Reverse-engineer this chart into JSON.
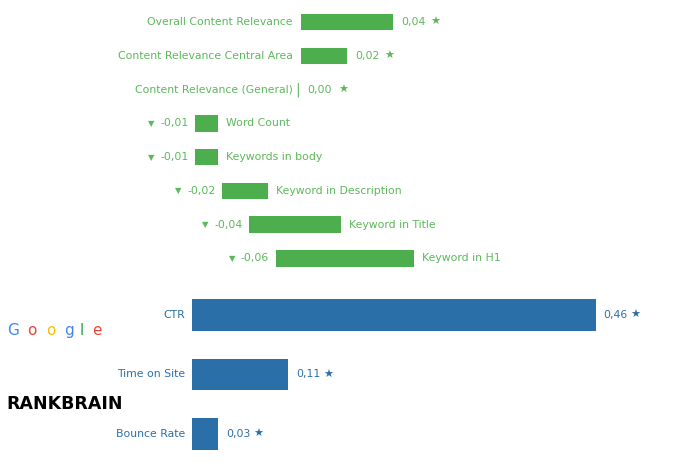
{
  "green_bars": [
    {
      "label": "Overall Content Relevance",
      "value": 0.04,
      "bar_width": 0.04,
      "indent": 0,
      "show_triangle": false,
      "show_star": true
    },
    {
      "label": "Content Relevance Central Area",
      "value": 0.02,
      "bar_width": 0.02,
      "indent": 0,
      "show_triangle": false,
      "show_star": true
    },
    {
      "label": "Content Relevance (General)",
      "value": 0.0,
      "bar_width": 0.0,
      "indent": 0,
      "show_triangle": false,
      "show_star": true
    },
    {
      "label": "Word Count",
      "value": -0.01,
      "bar_width": 0.01,
      "indent": 1,
      "show_triangle": true,
      "show_star": false
    },
    {
      "label": "Keywords in body",
      "value": -0.01,
      "bar_width": 0.01,
      "indent": 1,
      "show_triangle": true,
      "show_star": false
    },
    {
      "label": "Keyword in Description",
      "value": -0.02,
      "bar_width": 0.02,
      "indent": 2,
      "show_triangle": true,
      "show_star": false
    },
    {
      "label": "Keyword in Title",
      "value": -0.04,
      "bar_width": 0.04,
      "indent": 3,
      "show_triangle": true,
      "show_star": false
    },
    {
      "label": "Keyword in H1",
      "value": -0.06,
      "bar_width": 0.06,
      "indent": 4,
      "show_triangle": true,
      "show_star": false
    }
  ],
  "blue_bars": [
    {
      "label": "CTR",
      "value": 0.46,
      "show_star": true
    },
    {
      "label": "Time on Site",
      "value": 0.11,
      "show_star": true
    },
    {
      "label": "Bounce Rate",
      "value": 0.03,
      "show_star": true
    }
  ],
  "green_color": "#4cae4c",
  "blue_color": "#2b6fa8",
  "label_color_green": "#5cb85c",
  "label_color_blue": "#2b6fa8",
  "value_color_green": "#5cb85c",
  "value_color_blue": "#2b6fa8",
  "star_color_green": "#5cb85c",
  "star_color_blue": "#2b6fa8",
  "triangle_color": "#5cb85c",
  "bg_color": "#ffffff",
  "google_letter_colors": [
    "#4285F4",
    "#EA4335",
    "#FBBC05",
    "#4285F4",
    "#34A853",
    "#EA4335"
  ],
  "rankbrain_color": "#000000"
}
